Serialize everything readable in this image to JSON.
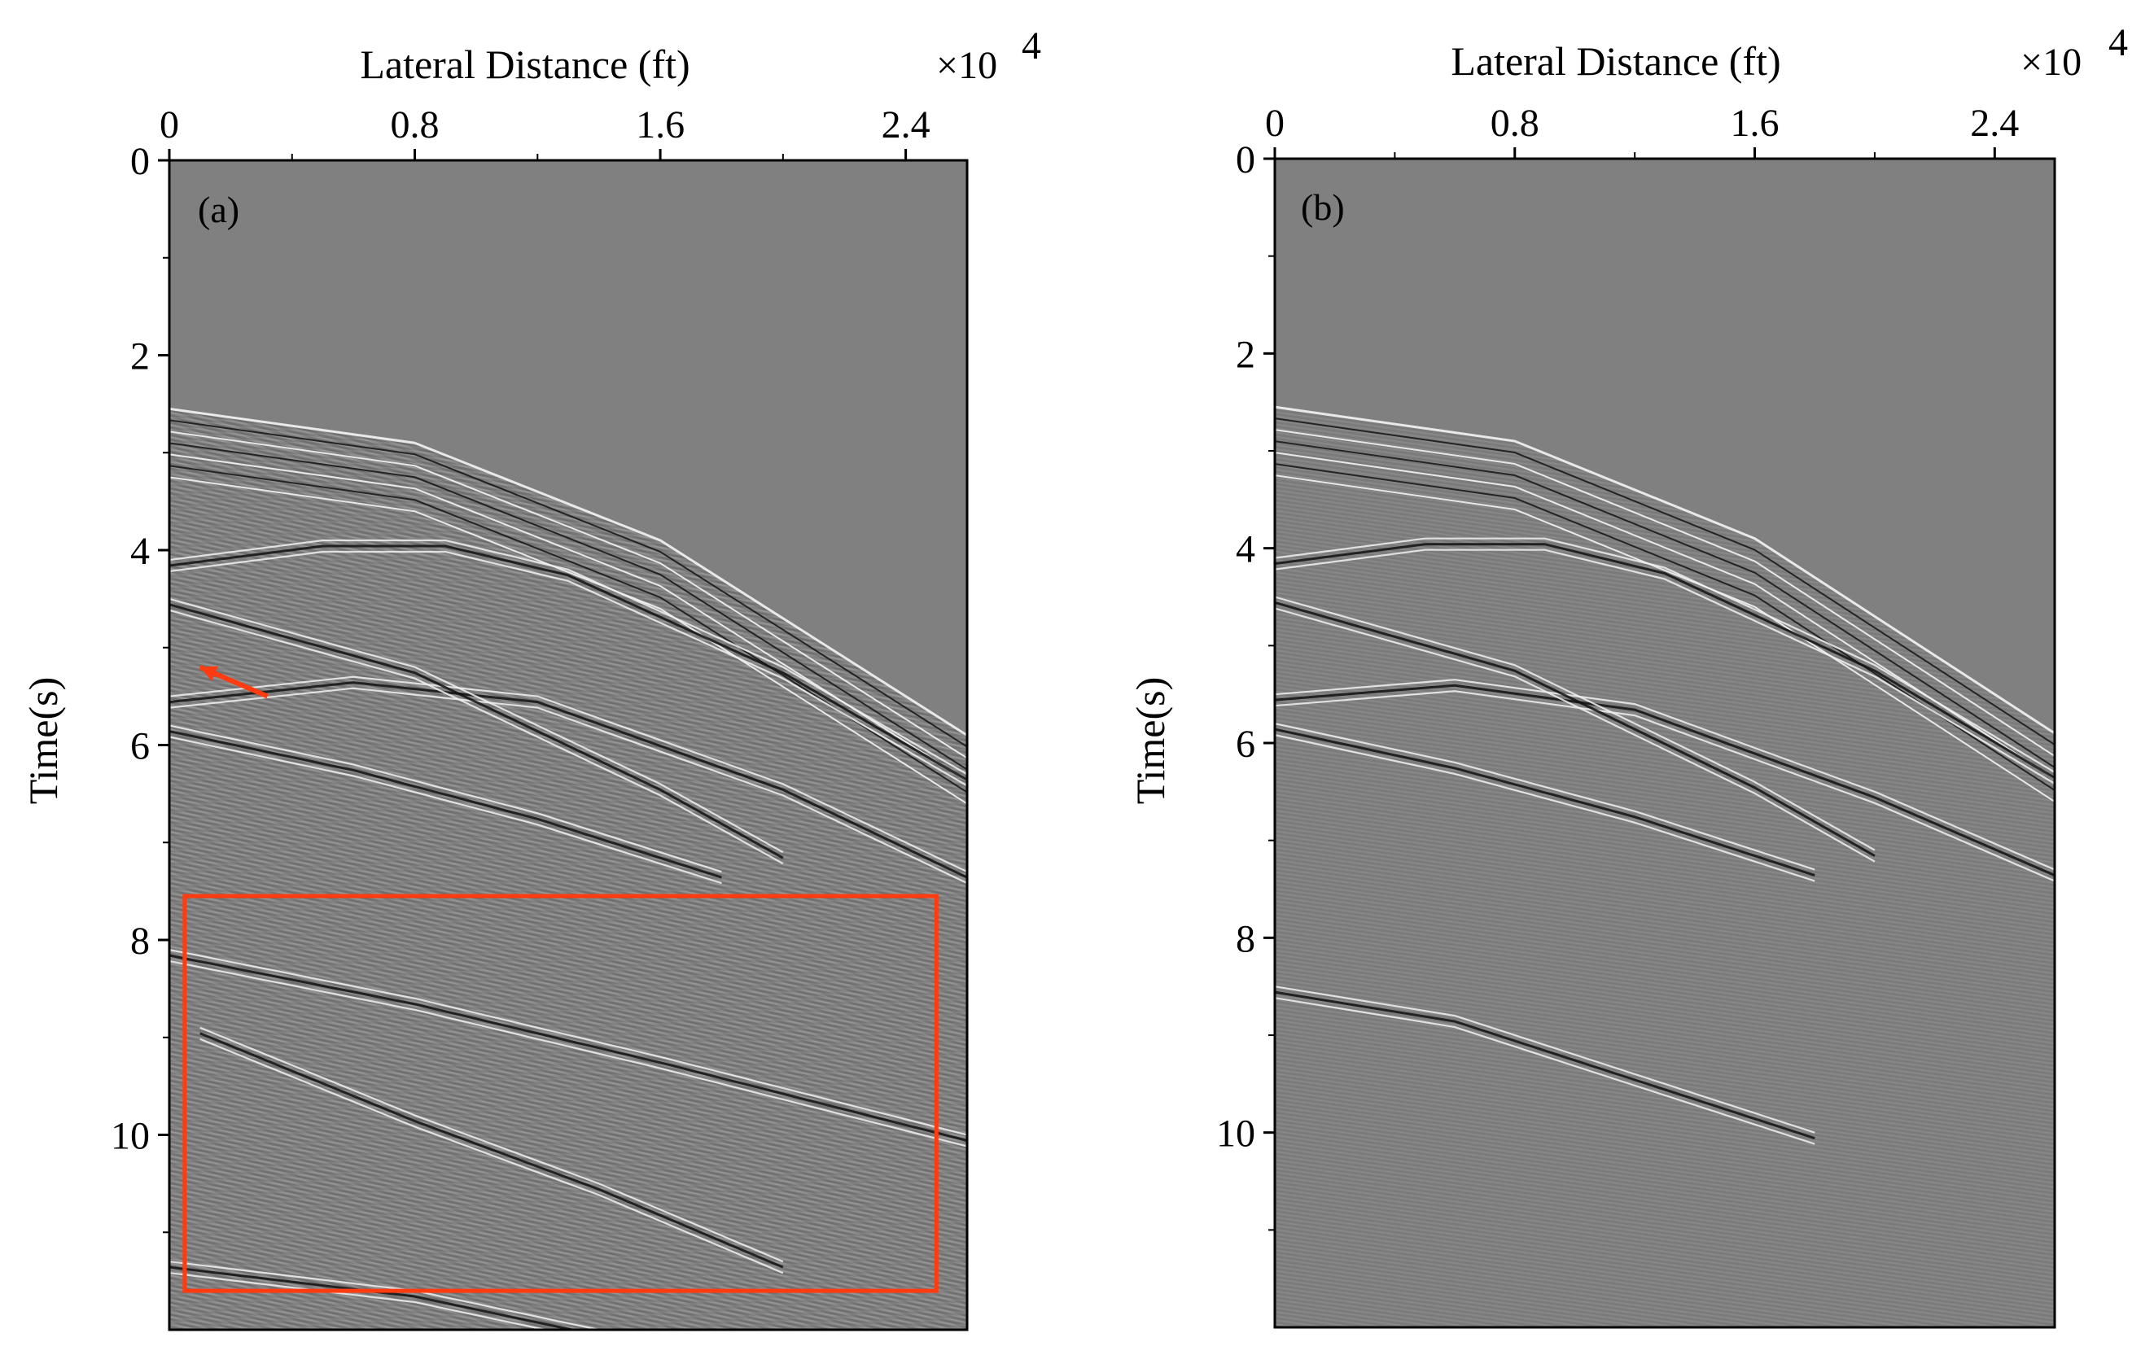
{
  "chart_data": [
    {
      "type": "heatmap",
      "panel_label": "(a)",
      "xlabel": "Lateral Distance (ft)",
      "ylabel": "Time(s)",
      "x_multiplier": "×10",
      "x_multiplier_exp": "4",
      "xlim": [
        0,
        2.6
      ],
      "ylim": [
        0,
        12
      ],
      "xticks": [
        0,
        0.8,
        1.6,
        2.4
      ],
      "xtick_labels": [
        "0",
        "0.8",
        "1.6",
        "2.4"
      ],
      "yticks": [
        0,
        2,
        4,
        6,
        8,
        10
      ],
      "ytick_labels": [
        "0",
        "2",
        "4",
        "6",
        "8",
        "10"
      ],
      "background_color": "#808080",
      "first_arrival": {
        "description_points": [
          [
            0,
            2.55
          ],
          [
            0.8,
            2.9
          ],
          [
            1.6,
            3.9
          ],
          [
            2.6,
            5.9
          ]
        ]
      },
      "events": [
        {
          "points": [
            [
              0,
              4.1
            ],
            [
              0.5,
              3.9
            ],
            [
              0.9,
              3.9
            ],
            [
              1.3,
              4.2
            ],
            [
              2.0,
              5.2
            ],
            [
              2.6,
              6.3
            ]
          ]
        },
        {
          "points": [
            [
              0,
              5.5
            ],
            [
              0.6,
              5.3
            ],
            [
              1.2,
              5.5
            ],
            [
              2.0,
              6.4
            ],
            [
              2.6,
              7.3
            ]
          ]
        },
        {
          "points": [
            [
              0,
              4.5
            ],
            [
              0.8,
              5.2
            ],
            [
              1.6,
              6.4
            ],
            [
              2.0,
              7.1
            ]
          ]
        },
        {
          "points": [
            [
              0,
              5.8
            ],
            [
              0.6,
              6.2
            ],
            [
              1.2,
              6.7
            ],
            [
              1.8,
              7.3
            ]
          ]
        },
        {
          "points": [
            [
              0,
              8.1
            ],
            [
              0.8,
              8.6
            ],
            [
              1.6,
              9.2
            ],
            [
              2.6,
              10.0
            ]
          ]
        },
        {
          "points": [
            [
              0.1,
              8.9
            ],
            [
              0.8,
              9.8
            ],
            [
              1.4,
              10.5
            ],
            [
              2.0,
              11.3
            ]
          ]
        },
        {
          "points": [
            [
              0,
              11.3
            ],
            [
              0.8,
              11.6
            ],
            [
              1.4,
              12.0
            ]
          ]
        }
      ],
      "annotation_box": {
        "x": [
          0.05,
          2.5
        ],
        "y": [
          7.55,
          11.6
        ],
        "color": "#ff3b0f"
      },
      "annotation_arrow": {
        "from": [
          0.32,
          5.5
        ],
        "to": [
          0.1,
          5.2
        ],
        "color": "#ff3b0f"
      }
    },
    {
      "type": "heatmap",
      "panel_label": "(b)",
      "xlabel": "Lateral Distance (ft)",
      "ylabel": "Time(s)",
      "x_multiplier": "×10",
      "x_multiplier_exp": "4",
      "xlim": [
        0,
        2.6
      ],
      "ylim": [
        0,
        12
      ],
      "xticks": [
        0,
        0.8,
        1.6,
        2.4
      ],
      "xtick_labels": [
        "0",
        "0.8",
        "1.6",
        "2.4"
      ],
      "yticks": [
        0,
        2,
        4,
        6,
        8,
        10
      ],
      "ytick_labels": [
        "0",
        "2",
        "4",
        "6",
        "8",
        "10"
      ],
      "background_color": "#808080",
      "first_arrival": {
        "description_points": [
          [
            0,
            2.55
          ],
          [
            0.8,
            2.9
          ],
          [
            1.6,
            3.9
          ],
          [
            2.6,
            5.9
          ]
        ]
      },
      "events": [
        {
          "points": [
            [
              0,
              4.1
            ],
            [
              0.5,
              3.9
            ],
            [
              0.9,
              3.9
            ],
            [
              1.3,
              4.2
            ],
            [
              2.0,
              5.2
            ],
            [
              2.6,
              6.3
            ]
          ]
        },
        {
          "points": [
            [
              0,
              5.5
            ],
            [
              0.6,
              5.35
            ],
            [
              1.2,
              5.6
            ],
            [
              2.0,
              6.5
            ],
            [
              2.6,
              7.3
            ]
          ]
        },
        {
          "points": [
            [
              0,
              4.5
            ],
            [
              0.8,
              5.2
            ],
            [
              1.6,
              6.4
            ],
            [
              2.0,
              7.1
            ]
          ]
        },
        {
          "points": [
            [
              0,
              5.8
            ],
            [
              0.6,
              6.2
            ],
            [
              1.2,
              6.7
            ],
            [
              1.8,
              7.3
            ]
          ]
        },
        {
          "points": [
            [
              0,
              8.5
            ],
            [
              0.6,
              8.8
            ],
            [
              1.2,
              9.4
            ],
            [
              1.8,
              10.0
            ]
          ]
        }
      ]
    }
  ]
}
